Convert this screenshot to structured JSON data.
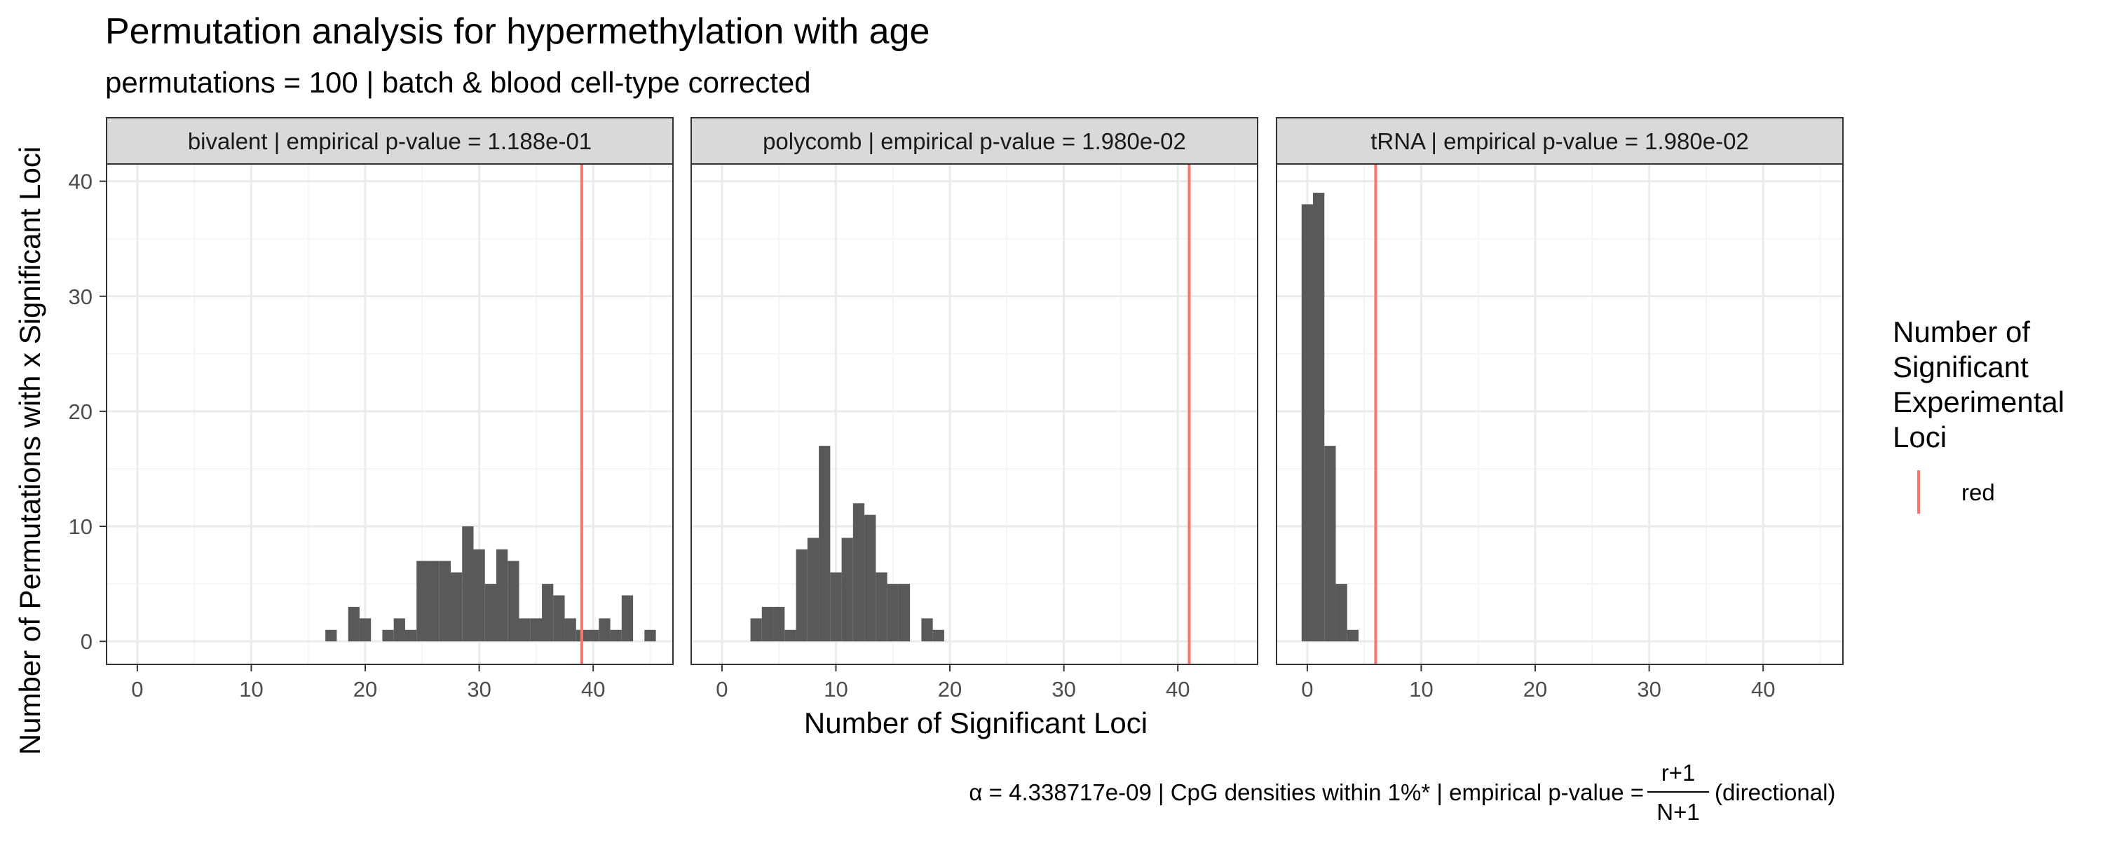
{
  "chart_data": {
    "type": "bar",
    "title": "Permutation analysis for hypermethylation with age",
    "subtitle": "permutations = 100 | batch & blood cell-type corrected",
    "xlabel": "Number of Significant Loci",
    "ylabel": "Number of Permutations with x Significant Loci",
    "xlim": [
      -2.7,
      47
    ],
    "ylim": [
      -2.0,
      41.5
    ],
    "x_ticks": [
      0,
      10,
      20,
      30,
      40
    ],
    "y_ticks": [
      0,
      10,
      20,
      30,
      40
    ],
    "grid": true,
    "bin_width": 1,
    "panels": [
      {
        "label": "bivalent | empirical p-value = 1.188e-01",
        "observed": 39,
        "bins": [
          [
            17,
            1
          ],
          [
            19,
            3
          ],
          [
            20,
            2
          ],
          [
            22,
            1
          ],
          [
            23,
            2
          ],
          [
            24,
            1
          ],
          [
            25,
            7
          ],
          [
            26,
            7
          ],
          [
            27,
            7
          ],
          [
            28,
            6
          ],
          [
            29,
            10
          ],
          [
            30,
            8
          ],
          [
            31,
            5
          ],
          [
            32,
            8
          ],
          [
            33,
            7
          ],
          [
            34,
            2
          ],
          [
            35,
            2
          ],
          [
            36,
            5
          ],
          [
            37,
            4
          ],
          [
            38,
            2
          ],
          [
            39,
            1
          ],
          [
            40,
            1
          ],
          [
            41,
            2
          ],
          [
            42,
            1
          ],
          [
            43,
            4
          ],
          [
            45,
            1
          ]
        ]
      },
      {
        "label": "polycomb | empirical p-value = 1.980e-02",
        "observed": 41,
        "bins": [
          [
            3,
            2
          ],
          [
            4,
            3
          ],
          [
            5,
            3
          ],
          [
            6,
            1
          ],
          [
            7,
            8
          ],
          [
            8,
            9
          ],
          [
            9,
            17
          ],
          [
            10,
            6
          ],
          [
            11,
            9
          ],
          [
            12,
            12
          ],
          [
            13,
            11
          ],
          [
            14,
            6
          ],
          [
            15,
            5
          ],
          [
            16,
            5
          ],
          [
            18,
            2
          ],
          [
            19,
            1
          ]
        ]
      },
      {
        "label": "tRNA | empirical p-value = 1.980e-02",
        "observed": 6,
        "bins": [
          [
            0,
            38
          ],
          [
            1,
            39
          ],
          [
            2,
            17
          ],
          [
            3,
            5
          ],
          [
            4,
            1
          ]
        ]
      }
    ],
    "legend": {
      "title_lines": [
        "Number of",
        "Significant",
        "Experimental",
        "Loci"
      ],
      "entries": [
        {
          "label": "red",
          "color": "#F8766D"
        }
      ],
      "position": "right"
    },
    "caption": {
      "prefix": "α = 4.338717e-09 | CpG densities within 1%* | empirical p-value =",
      "numerator": "r+1",
      "denominator": "N+1",
      "suffix": "(directional)"
    }
  },
  "colors": {
    "bar": "#595959",
    "observed_line": "#F8766D",
    "strip_fill": "#D9D9D9",
    "panel_border": "#333333",
    "grid_major": "#EBEBEB",
    "grid_minor": "#F5F5F5"
  }
}
